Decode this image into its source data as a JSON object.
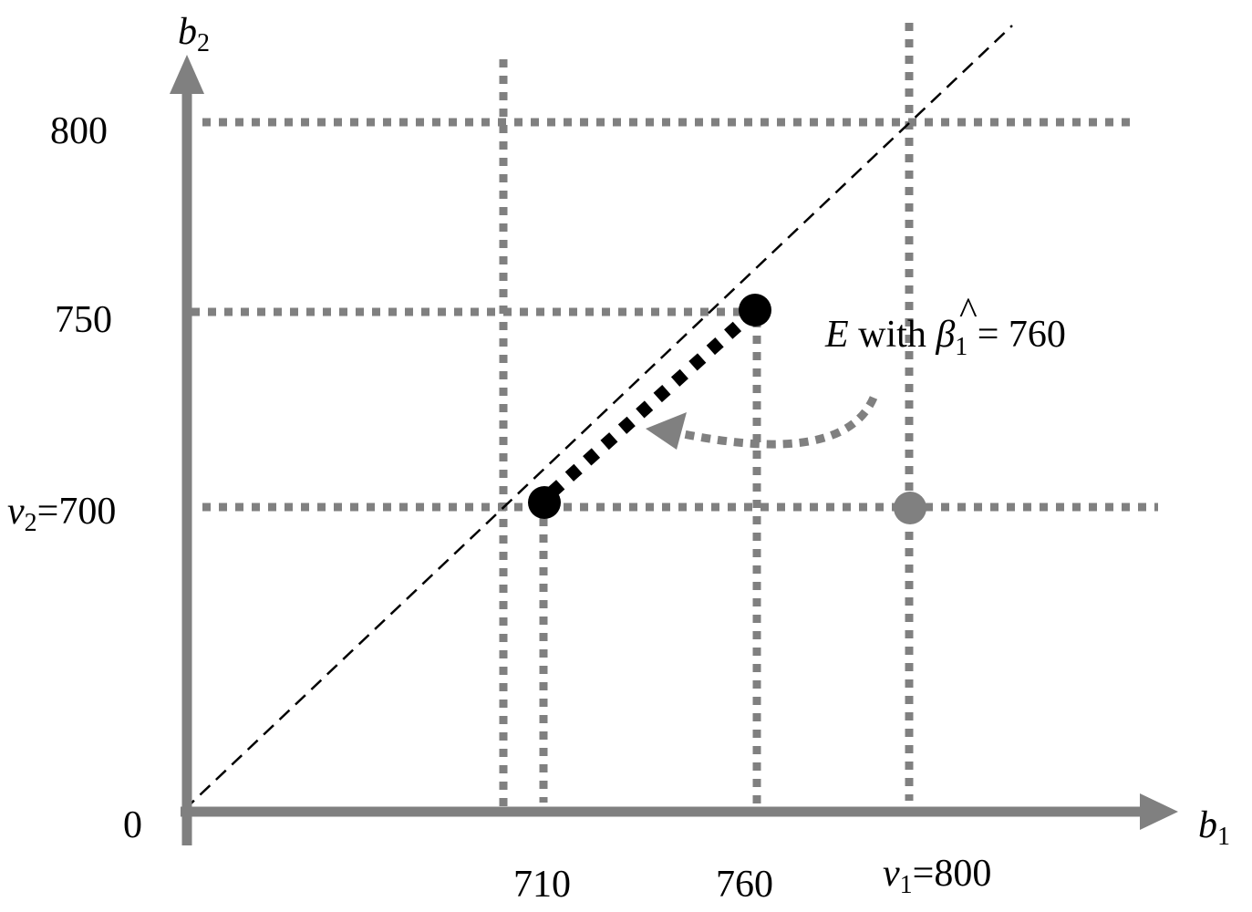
{
  "axes": {
    "x_name": "b",
    "x_sub": "1",
    "y_name": "b",
    "y_sub": "2",
    "origin": "0"
  },
  "x_ticks": {
    "t710": "710",
    "t760": "760",
    "v1_name": "v",
    "v1_sub": "1",
    "v1_value": "=800"
  },
  "y_ticks": {
    "t800": "800",
    "t750": "750",
    "v2_name": "v",
    "v2_sub": "2",
    "v2_value": "=700"
  },
  "annotation": {
    "set_name": "E",
    "with": " with ",
    "beta": "β",
    "beta_hat": "^",
    "beta_sub": "1",
    "eq": " = 760"
  },
  "colors": {
    "axis": "#808080",
    "points": "#000000",
    "value_point": "#808080"
  }
}
